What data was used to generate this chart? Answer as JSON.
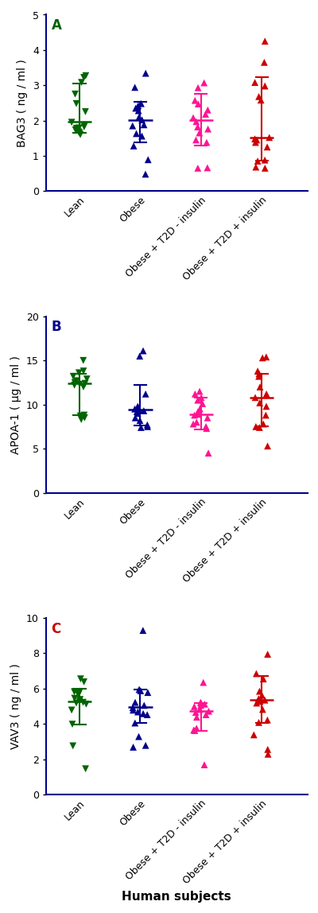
{
  "panel_A": {
    "label": "A",
    "label_color": "#006400",
    "ylabel": "BAG3 ( ng / ml )",
    "ylim": [
      0,
      5
    ],
    "yticks": [
      0,
      1,
      2,
      3,
      4,
      5
    ],
    "groups": [
      {
        "name": "Lean",
        "color": "#006400",
        "marker": "v",
        "median": 1.97,
        "ci_low": 1.65,
        "ci_high": 3.06,
        "points": [
          3.08,
          3.27,
          3.22,
          2.75,
          2.48,
          2.25,
          1.95,
          1.87,
          1.82,
          1.79,
          1.78,
          1.73,
          1.73,
          1.68,
          1.65,
          1.6
        ]
      },
      {
        "name": "Obese",
        "color": "#00008B",
        "marker": "^",
        "median": 2.02,
        "ci_low": 1.38,
        "ci_high": 2.54,
        "points": [
          3.34,
          2.94,
          2.48,
          2.42,
          2.35,
          2.28,
          2.1,
          2.02,
          1.88,
          1.85,
          1.63,
          1.56,
          1.28,
          0.89,
          0.48
        ]
      },
      {
        "name": "Obese + T2D - insulin",
        "color": "#FF1493",
        "marker": "^",
        "median": 2.02,
        "ci_low": 1.28,
        "ci_high": 2.75,
        "points": [
          3.07,
          2.93,
          2.57,
          2.47,
          2.3,
          2.18,
          2.08,
          1.97,
          1.82,
          1.76,
          1.65,
          1.45,
          1.38,
          0.66,
          0.65
        ]
      },
      {
        "name": "Obese + T2D + insulin",
        "color": "#CC0000",
        "marker": "^",
        "median": 1.52,
        "ci_low": 0.87,
        "ci_high": 3.22,
        "points": [
          4.25,
          3.65,
          3.08,
          2.98,
          2.68,
          2.58,
          1.52,
          1.48,
          1.45,
          1.38,
          1.25,
          0.88,
          0.85,
          0.68,
          0.65
        ]
      }
    ]
  },
  "panel_B": {
    "label": "B",
    "label_color": "#00008B",
    "ylabel": "APOA-1 ( μg / ml )",
    "ylim": [
      0,
      20
    ],
    "yticks": [
      0,
      5,
      10,
      15,
      20
    ],
    "groups": [
      {
        "name": "Lean",
        "color": "#006400",
        "marker": "v",
        "median": 12.4,
        "ci_low": 8.8,
        "ci_high": 13.5,
        "points": [
          15.0,
          13.8,
          13.6,
          13.2,
          12.9,
          12.7,
          12.5,
          12.4,
          12.3,
          12.2,
          12.0,
          8.8,
          8.7,
          8.5,
          8.3
        ]
      },
      {
        "name": "Obese",
        "color": "#00008B",
        "marker": "^",
        "median": 9.4,
        "ci_low": 7.6,
        "ci_high": 12.2,
        "points": [
          16.1,
          15.5,
          11.2,
          9.8,
          9.6,
          9.5,
          9.4,
          9.3,
          9.2,
          9.0,
          8.5,
          8.2,
          7.7,
          7.5,
          7.4
        ]
      },
      {
        "name": "Obese + T2D - insulin",
        "color": "#FF1493",
        "marker": "^",
        "median": 8.9,
        "ci_low": 7.2,
        "ci_high": 10.8,
        "points": [
          11.5,
          11.2,
          10.8,
          10.5,
          10.1,
          9.5,
          9.2,
          8.9,
          8.8,
          8.5,
          8.0,
          7.8,
          7.5,
          7.3,
          4.5
        ]
      },
      {
        "name": "Obese + T2D + insulin",
        "color": "#CC0000",
        "marker": "^",
        "median": 10.8,
        "ci_low": 7.5,
        "ci_high": 13.5,
        "points": [
          15.4,
          15.3,
          13.8,
          13.5,
          13.2,
          12.0,
          11.2,
          10.8,
          10.2,
          9.8,
          8.8,
          7.8,
          7.5,
          7.4,
          5.3
        ]
      }
    ]
  },
  "panel_C": {
    "label": "C",
    "label_color": "#CC0000",
    "ylabel": "VAV3 ( ng / ml )",
    "ylim": [
      0,
      10
    ],
    "yticks": [
      0,
      2,
      4,
      6,
      8,
      10
    ],
    "groups": [
      {
        "name": "Lean",
        "color": "#006400",
        "marker": "v",
        "median": 5.25,
        "ci_low": 3.95,
        "ci_high": 5.98,
        "points": [
          6.55,
          6.38,
          5.82,
          5.75,
          5.65,
          5.45,
          5.38,
          5.28,
          5.22,
          5.18,
          5.12,
          4.78,
          3.98,
          2.75,
          1.45
        ]
      },
      {
        "name": "Obese",
        "color": "#00008B",
        "marker": "^",
        "median": 4.95,
        "ci_low": 4.05,
        "ci_high": 5.95,
        "points": [
          9.3,
          5.95,
          5.88,
          5.78,
          5.22,
          5.05,
          4.92,
          4.78,
          4.68,
          4.58,
          4.52,
          4.05,
          3.28,
          2.78,
          2.68
        ]
      },
      {
        "name": "Obese + T2D - insulin",
        "color": "#FF1493",
        "marker": "^",
        "median": 4.72,
        "ci_low": 3.62,
        "ci_high": 5.18,
        "points": [
          6.35,
          5.22,
          5.18,
          5.12,
          5.05,
          4.98,
          4.82,
          4.72,
          4.65,
          4.52,
          4.38,
          3.75,
          3.65,
          3.62,
          1.68
        ]
      },
      {
        "name": "Obese + T2D + insulin",
        "color": "#CC0000",
        "marker": "^",
        "median": 5.35,
        "ci_low": 4.05,
        "ci_high": 6.72,
        "points": [
          7.95,
          6.85,
          6.55,
          5.85,
          5.62,
          5.42,
          5.35,
          5.28,
          5.18,
          4.82,
          4.22,
          4.08,
          3.38,
          2.55,
          2.28
        ]
      }
    ]
  },
  "xlabel": "Human subjects",
  "group_names": [
    "Lean",
    "Obese",
    "Obese + T2D - insulin",
    "Obese + T2D + insulin"
  ],
  "axis_color": "#00008B",
  "background_color": "white",
  "group_positions": [
    1,
    2,
    3,
    4
  ]
}
